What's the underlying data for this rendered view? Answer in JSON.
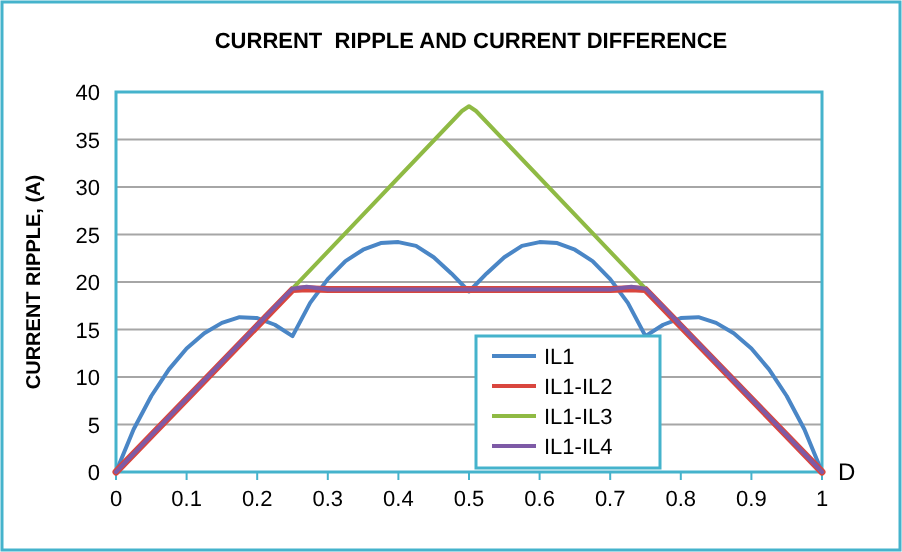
{
  "chart_data": {
    "type": "line",
    "title": "CURRENT  RIPPLE AND CURRENT DIFFERENCE",
    "xlabel": "D",
    "ylabel": "CURRENT RIPPLE, (A)",
    "xlim": [
      0,
      1
    ],
    "xticks": [
      0,
      0.1,
      0.2,
      0.3,
      0.4,
      0.5,
      0.6,
      0.7,
      0.8,
      0.9,
      1
    ],
    "ylim": [
      0,
      40
    ],
    "yticks": [
      0,
      5,
      10,
      15,
      20,
      25,
      30,
      35,
      40
    ],
    "grid": "y",
    "legend": "bottom right",
    "marker": "none",
    "line_style": "solid",
    "series": [
      {
        "name": "IL1",
        "color": "#4a86c6",
        "x": [
          0,
          0.025,
          0.05,
          0.075,
          0.1,
          0.125,
          0.15,
          0.175,
          0.2,
          0.225,
          0.25,
          0.275,
          0.3,
          0.325,
          0.35,
          0.375,
          0.4,
          0.425,
          0.45,
          0.475,
          0.5,
          0.525,
          0.55,
          0.575,
          0.6,
          0.625,
          0.65,
          0.675,
          0.7,
          0.725,
          0.75,
          0.775,
          0.8,
          0.825,
          0.85,
          0.875,
          0.9,
          0.925,
          0.95,
          0.975,
          1
        ],
        "values": [
          0,
          4.5,
          8,
          10.8,
          13,
          14.6,
          15.7,
          16.3,
          16.2,
          15.5,
          14.3,
          17.8,
          20.3,
          22.2,
          23.4,
          24.1,
          24.2,
          23.8,
          22.6,
          20.9,
          19,
          20.9,
          22.6,
          23.8,
          24.2,
          24.1,
          23.4,
          22.2,
          20.3,
          17.8,
          14.3,
          15.5,
          16.2,
          16.3,
          15.7,
          14.6,
          13,
          10.8,
          8,
          4.5,
          0
        ]
      },
      {
        "name": "IL1-IL2",
        "color": "#d9463e",
        "x": [
          0,
          0.25,
          0.27,
          0.3,
          0.7,
          0.73,
          0.75,
          1
        ],
        "values": [
          0,
          19.2,
          19.3,
          19.2,
          19.2,
          19.3,
          19.2,
          0
        ]
      },
      {
        "name": "IL1-IL3",
        "color": "#8fba44",
        "x": [
          0.25,
          0.49,
          0.5,
          0.51,
          0.75
        ],
        "values": [
          19.3,
          38,
          38.5,
          38,
          19.3
        ]
      },
      {
        "name": "IL1-IL4",
        "color": "#7e5aa6",
        "x": [
          0,
          0.25,
          0.27,
          0.3,
          0.7,
          0.73,
          0.75,
          1
        ],
        "values": [
          0,
          19.3,
          19.5,
          19.2,
          19.2,
          19.5,
          19.3,
          0
        ]
      }
    ]
  }
}
